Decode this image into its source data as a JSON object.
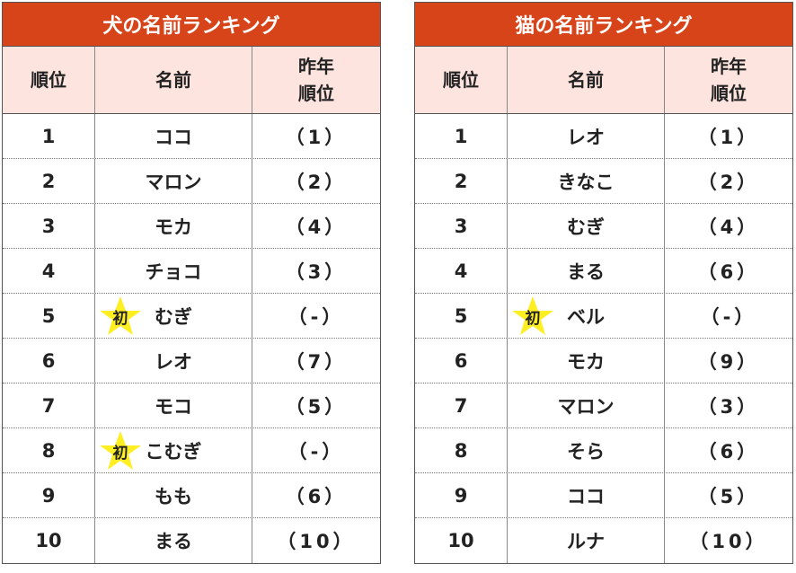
{
  "tables": [
    {
      "title": "犬の名前ランキング",
      "headers": [
        "順位",
        "名前",
        "昨年\n順位"
      ],
      "rows": [
        {
          "rank": 1,
          "name": "ココ",
          "prev": "（1）"
        },
        {
          "rank": 2,
          "name": "マロン",
          "prev": "（2）"
        },
        {
          "rank": 3,
          "name": "モカ",
          "prev": "（4）"
        },
        {
          "rank": 4,
          "name": "チョコ",
          "prev": "（3）"
        },
        {
          "rank": 5,
          "name": "むぎ",
          "prev": "（-）",
          "badge": "初"
        },
        {
          "rank": 6,
          "name": "レオ",
          "prev": "（7）"
        },
        {
          "rank": 7,
          "name": "モコ",
          "prev": "（5）"
        },
        {
          "rank": 8,
          "name": "こむぎ",
          "prev": "（-）",
          "badge": "初"
        },
        {
          "rank": 9,
          "name": "もも",
          "prev": "（6）"
        },
        {
          "rank": 10,
          "name": "まる",
          "prev": "（10）"
        }
      ]
    },
    {
      "title": "猫の名前ランキング",
      "headers": [
        "順位",
        "名前",
        "昨年\n順位"
      ],
      "rows": [
        {
          "rank": 1,
          "name": "レオ",
          "prev": "（1）"
        },
        {
          "rank": 2,
          "name": "きなこ",
          "prev": "（2）"
        },
        {
          "rank": 3,
          "name": "むぎ",
          "prev": "（4）"
        },
        {
          "rank": 4,
          "name": "まる",
          "prev": "（6）"
        },
        {
          "rank": 5,
          "name": "ベル",
          "prev": "（-）",
          "badge": "初"
        },
        {
          "rank": 6,
          "name": "モカ",
          "prev": "（9）"
        },
        {
          "rank": 7,
          "name": "マロン",
          "prev": "（3）"
        },
        {
          "rank": 8,
          "name": "そら",
          "prev": "（6）"
        },
        {
          "rank": 9,
          "name": "ココ",
          "prev": "（5）"
        },
        {
          "rank": 10,
          "name": "ルナ",
          "prev": "（10）"
        }
      ]
    }
  ]
}
